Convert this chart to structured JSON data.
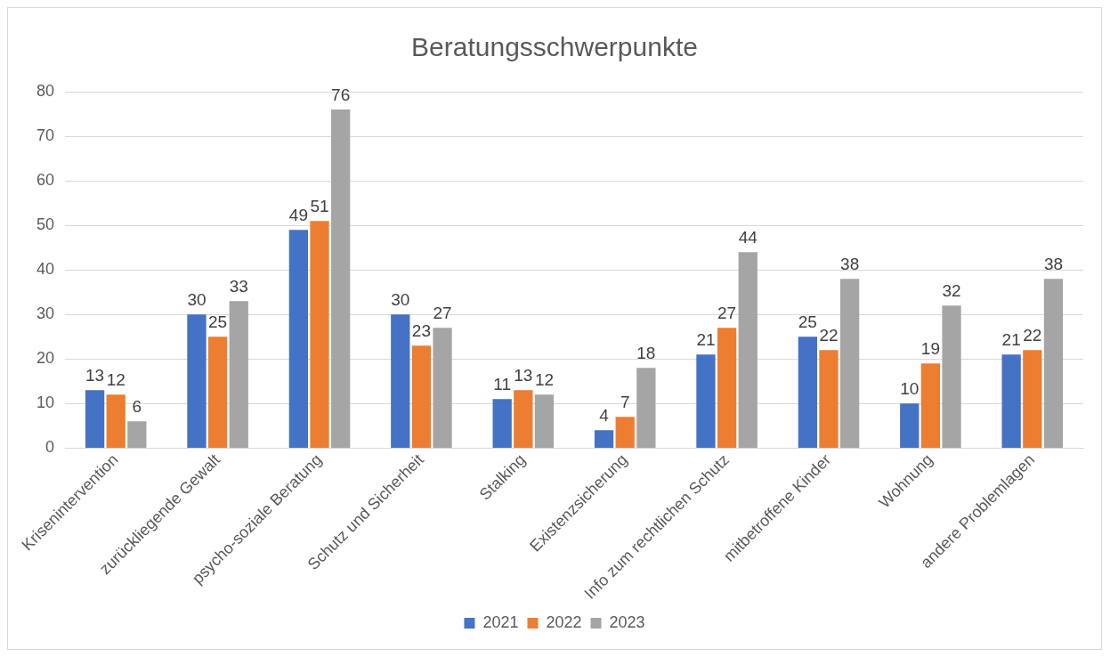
{
  "chart_data": {
    "type": "bar",
    "title": "Beratungsschwerpunkte",
    "categories": [
      "Krisenintervention",
      "zurückliegende Gewalt",
      "psycho-soziale Beratung",
      "Schutz und Sicherheit",
      "Stalking",
      "Existenzsicherung",
      "Info zum rechtlichen Schutz",
      "mitbetroffene Kinder",
      "Wohnung",
      "andere Problemlagen"
    ],
    "series": [
      {
        "name": "2021",
        "color": "#4472c4",
        "values": [
          13,
          30,
          49,
          30,
          11,
          4,
          21,
          25,
          10,
          21
        ]
      },
      {
        "name": "2022",
        "color": "#ed7d31",
        "values": [
          12,
          25,
          51,
          23,
          13,
          7,
          27,
          22,
          19,
          22
        ]
      },
      {
        "name": "2023",
        "color": "#a5a5a5",
        "values": [
          6,
          33,
          76,
          27,
          12,
          18,
          44,
          38,
          32,
          38
        ]
      }
    ],
    "ylim": [
      0,
      80
    ],
    "yticks": [
      0,
      10,
      20,
      30,
      40,
      50,
      60,
      70,
      80
    ],
    "grid": "y",
    "legend": "bottom",
    "data_labels": true
  }
}
